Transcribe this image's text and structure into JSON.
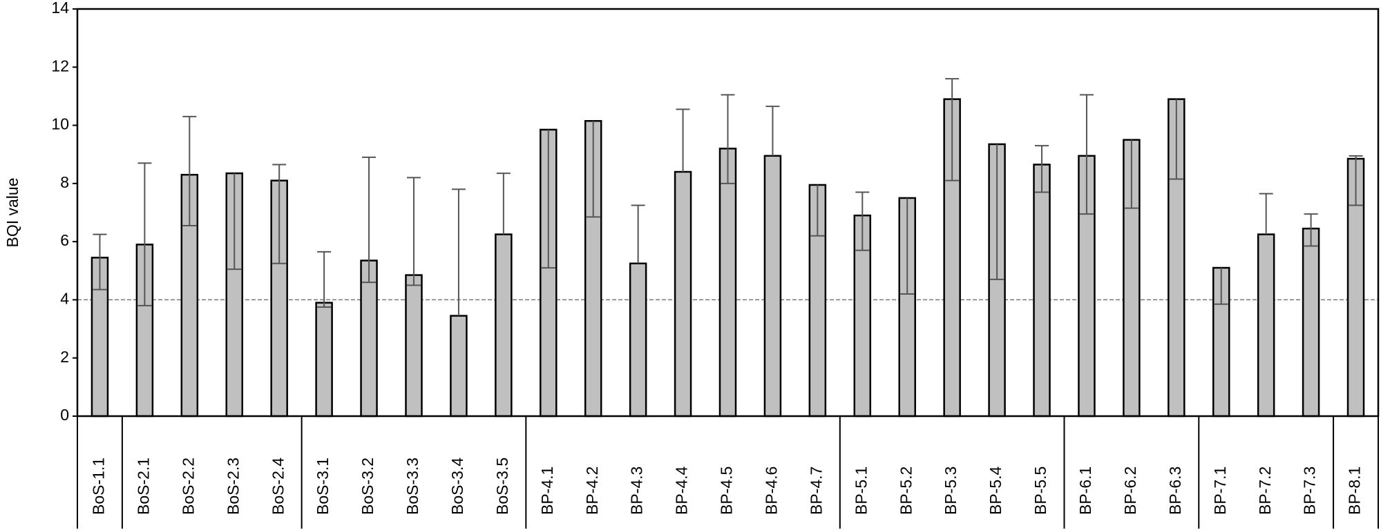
{
  "chart_data": {
    "type": "bar",
    "y_label": "BQI value",
    "categories": [
      "BoS-1.1",
      "BoS-2.1",
      "BoS-2.2",
      "BoS-2.3",
      "BoS-2.4",
      "BoS-3.1",
      "BoS-3.2",
      "BoS-3.3",
      "BoS-3.4",
      "BoS-3.5",
      "BP-4.1",
      "BP-4.2",
      "BP-4.3",
      "BP-4.4",
      "BP-4.5",
      "BP-4.6",
      "BP-4.7",
      "BP-5.1",
      "BP-5.2",
      "BP-5.3",
      "BP-5.4",
      "BP-5.5",
      "BP-6.1",
      "BP-6.2",
      "BP-6.3",
      "BP-7.1",
      "BP-7.2",
      "BP-7.3",
      "BP-8.1"
    ],
    "values": [
      5.45,
      5.9,
      8.3,
      8.35,
      8.1,
      3.9,
      5.35,
      4.85,
      3.45,
      6.25,
      9.85,
      10.15,
      5.25,
      8.4,
      9.2,
      8.95,
      7.95,
      6.9,
      7.5,
      10.9,
      9.35,
      8.65,
      8.95,
      9.5,
      10.9,
      5.1,
      6.25,
      6.45,
      8.85
    ],
    "error_low": [
      4.35,
      3.8,
      6.55,
      5.05,
      5.25,
      3.75,
      4.6,
      4.5,
      null,
      null,
      5.1,
      6.85,
      null,
      null,
      8.0,
      null,
      6.2,
      5.7,
      4.2,
      8.1,
      4.7,
      7.7,
      6.95,
      7.15,
      8.15,
      3.85,
      null,
      5.85,
      7.25
    ],
    "error_high": [
      6.25,
      8.7,
      10.3,
      null,
      8.65,
      5.65,
      8.9,
      8.2,
      7.8,
      8.35,
      null,
      null,
      7.25,
      10.55,
      11.05,
      10.65,
      null,
      7.7,
      null,
      11.6,
      null,
      9.3,
      11.05,
      null,
      null,
      null,
      7.65,
      6.95,
      8.95
    ],
    "color": "#c0c0c0",
    "error_color": "#555555",
    "threshold": 4,
    "ylim": [
      0,
      14
    ],
    "yticks": [
      0,
      2,
      4,
      6,
      8,
      10,
      12,
      14
    ]
  }
}
